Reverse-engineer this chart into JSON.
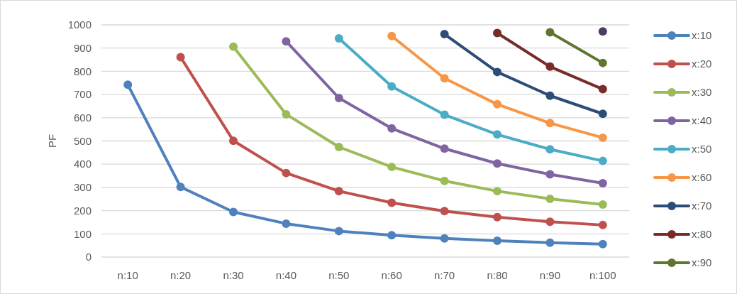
{
  "chart_data": {
    "type": "line",
    "ylabel": "PF",
    "categories": [
      "n:10",
      "n:20",
      "n:30",
      "n:40",
      "n:50",
      "n:60",
      "n:70",
      "n:80",
      "n:90",
      "n:100"
    ],
    "ylim": [
      0,
      1000
    ],
    "yticks": [
      0,
      100,
      200,
      300,
      400,
      500,
      600,
      700,
      800,
      900,
      1000
    ],
    "grid": "y",
    "legend": "right",
    "marker": "circle",
    "line_style": "solid",
    "series": [
      {
        "name": "x:10",
        "color": "#4f81bd",
        "values": [
          742,
          302,
          194,
          144,
          112,
          94,
          80,
          70,
          62,
          56
        ]
      },
      {
        "name": "x:20",
        "color": "#c0504d",
        "values": [
          null,
          861,
          501,
          362,
          284,
          234,
          198,
          172,
          152,
          138
        ]
      },
      {
        "name": "x:30",
        "color": "#9bbb59",
        "values": [
          null,
          null,
          906,
          615,
          474,
          388,
          328,
          284,
          251,
          226
        ]
      },
      {
        "name": "x:40",
        "color": "#8064a2",
        "values": [
          null,
          null,
          null,
          929,
          685,
          554,
          467,
          403,
          356,
          318
        ]
      },
      {
        "name": "x:50",
        "color": "#4bacc6",
        "values": [
          null,
          null,
          null,
          null,
          942,
          735,
          613,
          528,
          464,
          414
        ]
      },
      {
        "name": "x:60",
        "color": "#f79646",
        "values": [
          null,
          null,
          null,
          null,
          null,
          952,
          770,
          658,
          577,
          514
        ]
      },
      {
        "name": "x:70",
        "color": "#2c4d75",
        "values": [
          null,
          null,
          null,
          null,
          null,
          null,
          960,
          797,
          695,
          617
        ]
      },
      {
        "name": "x:80",
        "color": "#772c2a",
        "values": [
          null,
          null,
          null,
          null,
          null,
          null,
          null,
          965,
          820,
          723
        ]
      },
      {
        "name": "x:90",
        "color": "#5f7530",
        "values": [
          null,
          null,
          null,
          null,
          null,
          null,
          null,
          null,
          968,
          836
        ]
      },
      {
        "color": "#4d3b62",
        "values": [
          null,
          null,
          null,
          null,
          null,
          null,
          null,
          null,
          null,
          972
        ]
      }
    ]
  }
}
